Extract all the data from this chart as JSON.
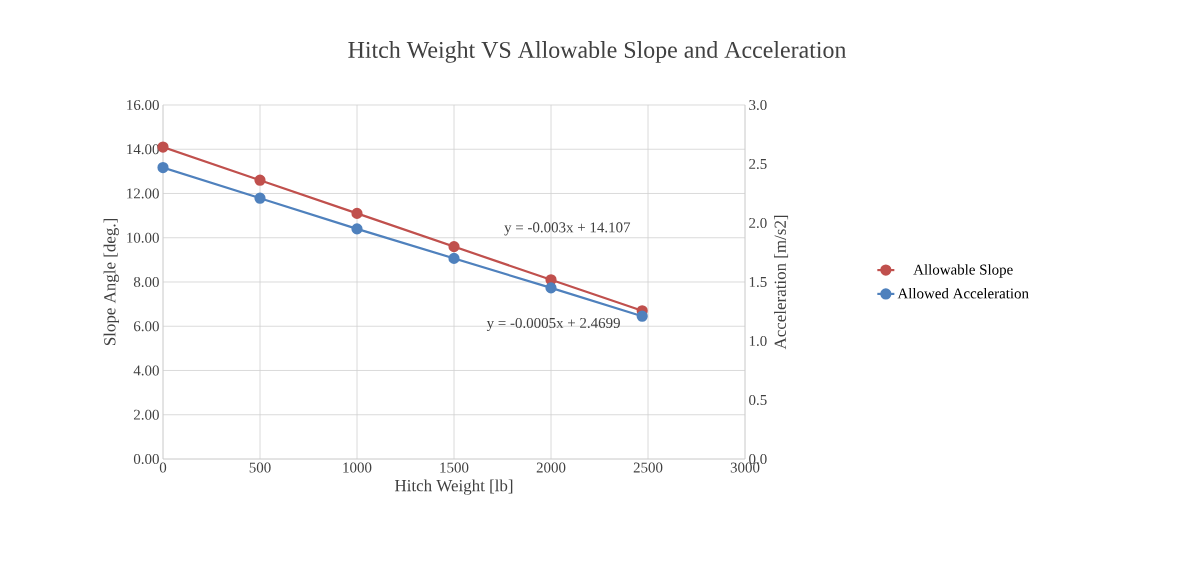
{
  "chart_data": {
    "type": "line",
    "title": "Hitch Weight VS Allowable Slope and Acceleration",
    "xlabel": "Hitch Weight [lb]",
    "ylabel": "Slope Angle [deg.]",
    "y2label": "Acceleration [m/s2]",
    "xlim": [
      0,
      3000
    ],
    "xticks": [
      0,
      500,
      1000,
      1500,
      2000,
      2500,
      3000
    ],
    "ylim": [
      0,
      16
    ],
    "yticks": [
      {
        "value": 0,
        "label": "0.00"
      },
      {
        "value": 2,
        "label": "2.00"
      },
      {
        "value": 4,
        "label": "4.00"
      },
      {
        "value": 6,
        "label": "6.00"
      },
      {
        "value": 8,
        "label": "8.00"
      },
      {
        "value": 10,
        "label": "10.00"
      },
      {
        "value": 12,
        "label": "12.00"
      },
      {
        "value": 14,
        "label": "14.00"
      },
      {
        "value": 16,
        "label": "16.00"
      }
    ],
    "y2lim": [
      0,
      3
    ],
    "y2ticks": [
      {
        "value": 0,
        "label": "0.0"
      },
      {
        "value": 0.5,
        "label": "0.5"
      },
      {
        "value": 1,
        "label": "1.0"
      },
      {
        "value": 1.5,
        "label": "1.5"
      },
      {
        "value": 2,
        "label": "2.0"
      },
      {
        "value": 2.5,
        "label": "2.5"
      },
      {
        "value": 3,
        "label": "3.0"
      }
    ],
    "x": [
      0,
      500,
      1000,
      1500,
      2000,
      2470
    ],
    "series": [
      {
        "name": "Allowable Slope",
        "color": "#c0504d",
        "values": [
          14.1,
          12.6,
          11.1,
          9.6,
          8.1,
          6.7
        ]
      },
      {
        "name": "Allowed Acceleration",
        "color": "#4f81bd",
        "axis": "y2",
        "values": [
          2.47,
          2.21,
          1.95,
          1.7,
          1.45,
          1.21
        ]
      }
    ],
    "annotations": [
      "y = -0.003x + 14.107",
      "y = -0.0005x + 2.4699"
    ],
    "grid": true,
    "legend": "right",
    "marker": "circle",
    "line_style": "solid"
  }
}
